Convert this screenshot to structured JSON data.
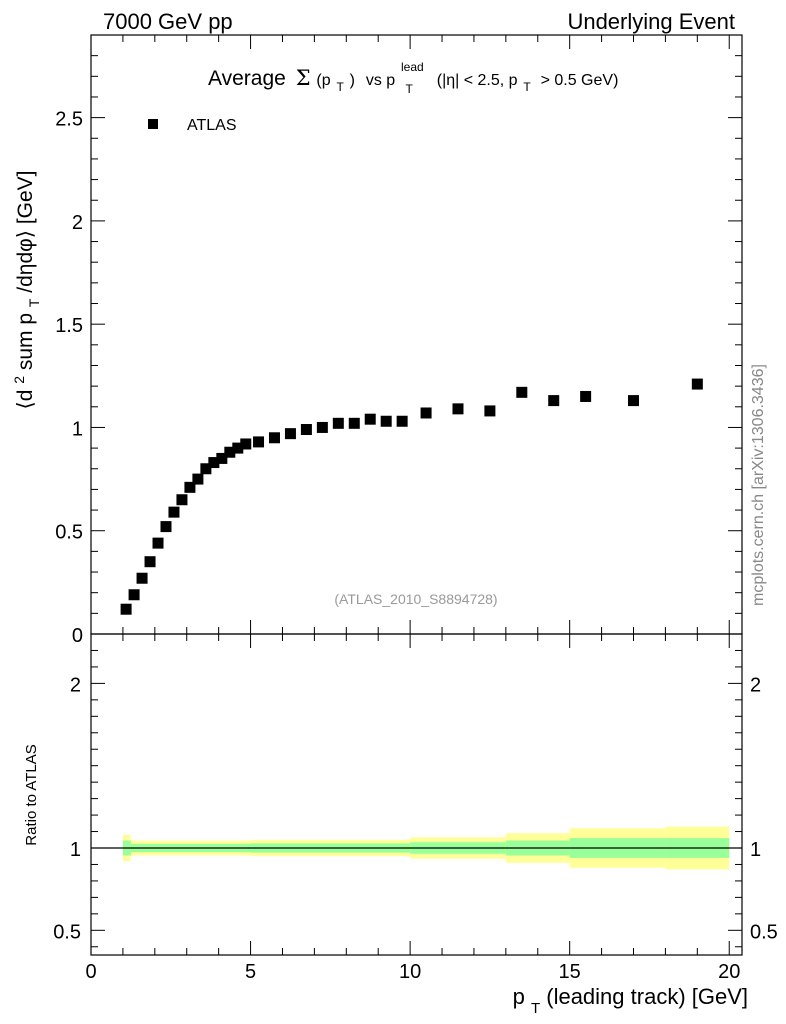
{
  "header": {
    "left": "7000 GeV pp",
    "right": "Underlying Event"
  },
  "watermark": "mcplots.cern.ch [arXiv:1306.3436]",
  "analysis_tag": "(ATLAS_2010_S8894728)",
  "title": {
    "prefix": "Average",
    "sigma": "Σ",
    "pt_paren_open": "(p",
    "pt_sub": "T",
    "pt_paren_close": ")",
    "vs": "vs p",
    "lead_sup": "lead",
    "lead_sub": "T",
    "cuts_a": "(|η| < 2.5, p",
    "cuts_sub": "T",
    "cuts_b": "> 0.5 GeV)"
  },
  "ylabel_main": {
    "a": "⟨d",
    "sup": "2",
    "b": " sum p",
    "sub": "T",
    "c": "/dηdφ⟩ [GeV]"
  },
  "ylabel_ratio": "Ratio to ATLAS",
  "xlabel": {
    "a": "p",
    "sub": "T",
    "b": " (leading track) [GeV]"
  },
  "legend": {
    "label": "ATLAS"
  },
  "colors": {
    "marker": "#000000",
    "band_outer": "#ffff99",
    "band_inner": "#99ff99"
  },
  "chart_data": [
    {
      "type": "scatter",
      "name": "main",
      "title": "Average Σ(pT) vs pT lead (|η| < 2.5, pT > 0.5 GeV)",
      "xlabel": "pT (leading track) [GeV]",
      "ylabel": "⟨d2 sum pT/dηdφ⟩ [GeV]",
      "xlim": [
        0,
        20.4
      ],
      "ylim": [
        0,
        2.9
      ],
      "yticks": [
        0,
        0.5,
        1,
        1.5,
        2,
        2.5
      ],
      "ytick_labels": [
        "0",
        "0.5",
        "1",
        "1.5",
        "2",
        "2.5"
      ],
      "legend_position": "top-left",
      "series": [
        {
          "name": "ATLAS",
          "x": [
            1.1,
            1.35,
            1.6,
            1.85,
            2.1,
            2.35,
            2.6,
            2.85,
            3.1,
            3.35,
            3.6,
            3.85,
            4.1,
            4.35,
            4.6,
            4.85,
            5.25,
            5.75,
            6.25,
            6.75,
            7.25,
            7.75,
            8.25,
            8.75,
            9.25,
            9.75,
            10.5,
            11.5,
            12.5,
            13.5,
            14.5,
            15.5,
            17.0,
            19.0
          ],
          "y": [
            0.12,
            0.19,
            0.27,
            0.35,
            0.44,
            0.52,
            0.59,
            0.65,
            0.71,
            0.75,
            0.8,
            0.83,
            0.85,
            0.88,
            0.9,
            0.92,
            0.93,
            0.95,
            0.97,
            0.99,
            1.0,
            1.02,
            1.02,
            1.04,
            1.03,
            1.03,
            1.07,
            1.09,
            1.08,
            1.17,
            1.13,
            1.15,
            1.13,
            1.21
          ]
        }
      ]
    },
    {
      "type": "area",
      "name": "ratio",
      "ylabel": "Ratio to ATLAS",
      "xlabel": "pT (leading track) [GeV]",
      "xlim": [
        0,
        20.4
      ],
      "ylim": [
        0.35,
        2.3
      ],
      "yticks": [
        0.5,
        1,
        2
      ],
      "ytick_labels": [
        "0.5",
        "1",
        "2"
      ],
      "xticks": [
        0,
        5,
        10,
        15,
        20
      ],
      "xtick_labels": [
        "0",
        "5",
        "10",
        "15",
        "20"
      ],
      "reference_line": 1,
      "bands": [
        {
          "name": "outer",
          "segments": [
            {
              "x0": 1.0,
              "x1": 1.25,
              "lo": 0.92,
              "hi": 1.08
            },
            {
              "x0": 1.25,
              "x1": 5.0,
              "lo": 0.955,
              "hi": 1.045
            },
            {
              "x0": 5.0,
              "x1": 10.0,
              "lo": 0.95,
              "hi": 1.05
            },
            {
              "x0": 10.0,
              "x1": 13.0,
              "lo": 0.935,
              "hi": 1.065
            },
            {
              "x0": 13.0,
              "x1": 15.0,
              "lo": 0.91,
              "hi": 1.09
            },
            {
              "x0": 15.0,
              "x1": 18.0,
              "lo": 0.88,
              "hi": 1.12
            },
            {
              "x0": 18.0,
              "x1": 20.0,
              "lo": 0.87,
              "hi": 1.13
            }
          ]
        },
        {
          "name": "inner",
          "segments": [
            {
              "x0": 1.0,
              "x1": 1.25,
              "lo": 0.955,
              "hi": 1.045
            },
            {
              "x0": 1.25,
              "x1": 5.0,
              "lo": 0.975,
              "hi": 1.025
            },
            {
              "x0": 5.0,
              "x1": 10.0,
              "lo": 0.972,
              "hi": 1.028
            },
            {
              "x0": 10.0,
              "x1": 13.0,
              "lo": 0.965,
              "hi": 1.035
            },
            {
              "x0": 13.0,
              "x1": 15.0,
              "lo": 0.955,
              "hi": 1.045
            },
            {
              "x0": 15.0,
              "x1": 18.0,
              "lo": 0.94,
              "hi": 1.06
            },
            {
              "x0": 18.0,
              "x1": 20.0,
              "lo": 0.94,
              "hi": 1.06
            }
          ]
        }
      ]
    }
  ]
}
